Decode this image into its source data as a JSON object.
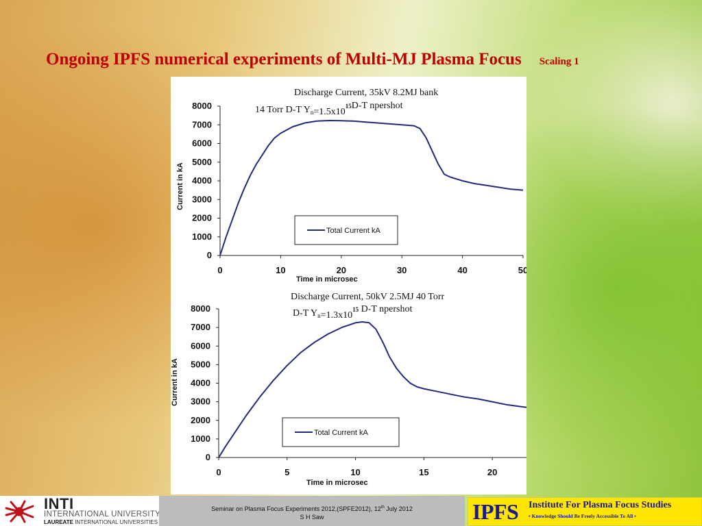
{
  "slide": {
    "title": "Ongoing IPFS numerical experiments of Multi-MJ Plasma Focus",
    "subtitle": "Scaling 1"
  },
  "chart_data": [
    {
      "type": "line",
      "title_line1": "Discharge Current, 35kV 8.2MJ  bank",
      "title_line2_pre": "14 Torr D-T    Y",
      "title_line2_sub": "n",
      "title_line2_mid": "=1.5x10",
      "title_line2_sup": "15",
      "title_line2_post": "D-T npershot",
      "xlabel": "Time in microsec",
      "ylabel": "Current in kA",
      "xlim": [
        0,
        50
      ],
      "ylim": [
        0,
        8000
      ],
      "xticks": [
        0,
        10,
        20,
        30,
        40,
        50
      ],
      "yticks": [
        0,
        1000,
        2000,
        3000,
        4000,
        5000,
        6000,
        7000,
        8000
      ],
      "legend": "top-center",
      "color": "#22297a",
      "series": [
        {
          "name": "Total Current kA",
          "x": [
            0,
            1,
            2,
            3,
            4,
            5,
            6,
            7,
            8,
            9,
            10,
            12,
            14,
            16,
            18,
            20,
            22,
            24,
            26,
            28,
            30,
            32,
            33,
            34,
            35,
            36,
            37,
            38,
            40,
            42,
            44,
            46,
            48,
            50
          ],
          "y": [
            0,
            1000,
            1900,
            2800,
            3600,
            4300,
            4900,
            5400,
            5900,
            6300,
            6550,
            6900,
            7100,
            7200,
            7230,
            7220,
            7200,
            7150,
            7100,
            7050,
            7000,
            6950,
            6800,
            6300,
            5600,
            4900,
            4350,
            4200,
            4000,
            3850,
            3750,
            3650,
            3550,
            3500
          ]
        }
      ]
    },
    {
      "type": "line",
      "title_line1": "Discharge Current, 50kV 2.5MJ 40 Torr",
      "title_line2_pre": "D-T    Y",
      "title_line2_sub": "n",
      "title_line2_mid": "=1.3x10",
      "title_line2_sup": "15",
      "title_line2_post": " D-T npershot",
      "xlabel": "Time in microsec",
      "ylabel": "Current in kA",
      "xlim": [
        0,
        22.5
      ],
      "ylim": [
        0,
        8000
      ],
      "xticks": [
        0,
        5,
        10,
        15,
        20
      ],
      "yticks": [
        0,
        1000,
        2000,
        3000,
        4000,
        5000,
        6000,
        7000,
        8000
      ],
      "legend": "bottom-center",
      "color": "#22297a",
      "series": [
        {
          "name": "Total Current kA",
          "x": [
            0,
            0.5,
            1,
            1.5,
            2,
            2.5,
            3,
            3.5,
            4,
            4.5,
            5,
            6,
            7,
            8,
            9,
            10,
            10.5,
            11,
            11.5,
            12,
            12.5,
            13,
            13.5,
            14,
            14.5,
            15,
            16,
            17,
            18,
            19,
            20,
            21,
            22.5
          ],
          "y": [
            0,
            600,
            1150,
            1700,
            2250,
            2750,
            3250,
            3700,
            4150,
            4550,
            4950,
            5650,
            6200,
            6650,
            7000,
            7250,
            7300,
            7250,
            6900,
            6200,
            5400,
            4800,
            4350,
            4000,
            3800,
            3700,
            3550,
            3400,
            3250,
            3150,
            3000,
            2850,
            2700
          ]
        }
      ]
    }
  ],
  "footer": {
    "inti_name": "INTI",
    "inti_university": "INTERNATIONAL UNIVERSITY",
    "inti_laureate_bold": "LAUREATE",
    "inti_laureate_rest": " INTERNATIONAL UNIVERSITIES",
    "seminar_line1": "Seminar on Plasma Focus Experiments 2012,(SPFE2012), 12",
    "seminar_sup": "th",
    "seminar_line1_end": " July 2012",
    "seminar_line2": "S H Saw",
    "ipfs_logo": "IPFS",
    "ipfs_full": "Institute For Plasma Focus Studies",
    "ipfs_motto": "• Knowledge Should Be Freely Accessible To All •",
    "inti_mark_color": "#c0101a"
  }
}
